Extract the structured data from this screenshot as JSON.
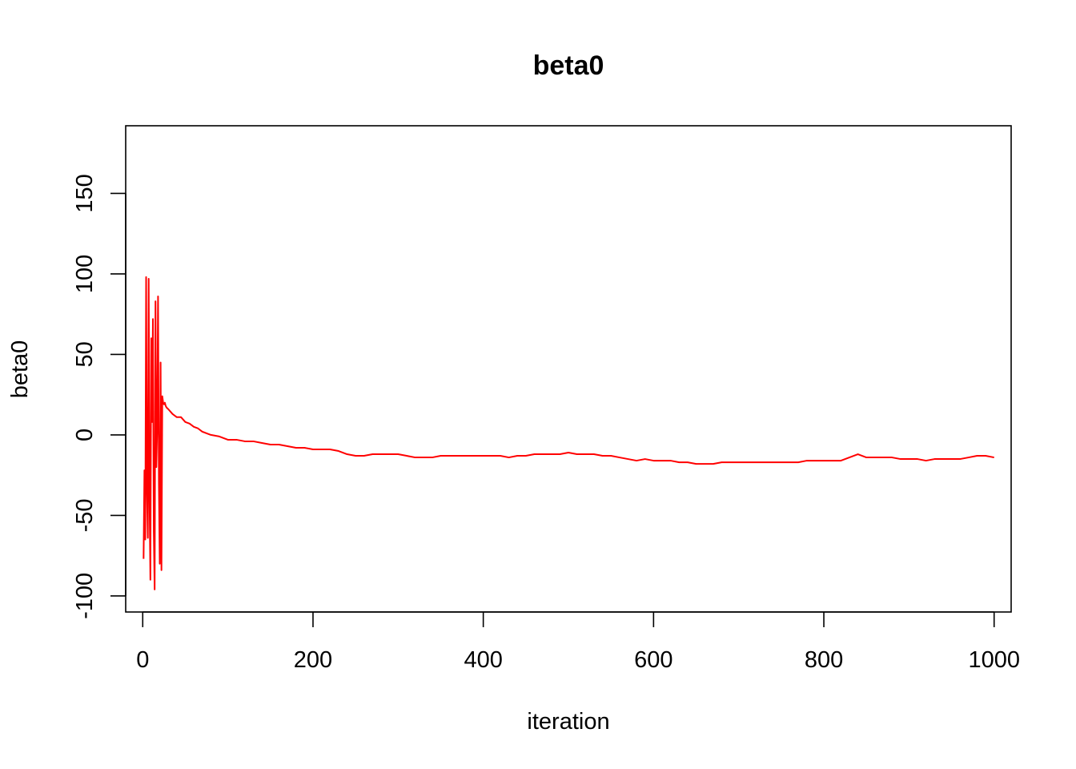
{
  "chart_data": {
    "type": "line",
    "title": "beta0",
    "xlabel": "iteration",
    "ylabel": "beta0",
    "xlim": [
      -20,
      1020
    ],
    "ylim": [
      -110,
      192
    ],
    "x_ticks": [
      0,
      200,
      400,
      600,
      800,
      1000
    ],
    "y_ticks": [
      -100,
      -50,
      0,
      50,
      100,
      150
    ],
    "x_tick_labels": [
      "0",
      "200",
      "400",
      "600",
      "800",
      "1000"
    ],
    "y_tick_labels": [
      "-100",
      "-50",
      "0",
      "50",
      "100",
      "150"
    ],
    "grid": false,
    "line_color": "#ff0000",
    "series": [
      {
        "x": [
          1,
          2,
          3,
          4,
          5,
          6,
          7,
          8,
          9,
          10,
          11,
          12,
          13,
          14,
          15,
          16,
          17,
          18,
          19,
          20,
          21,
          22,
          23,
          24,
          25,
          26,
          27,
          28,
          30,
          35,
          40,
          45,
          50,
          55,
          60,
          65,
          70,
          75,
          80,
          90,
          100,
          110,
          120,
          130,
          140,
          150,
          160,
          170,
          180,
          190,
          200,
          210,
          220,
          230,
          240,
          250,
          260,
          270,
          280,
          290,
          300,
          310,
          320,
          330,
          340,
          350,
          360,
          370,
          380,
          390,
          400,
          410,
          420,
          430,
          440,
          450,
          460,
          470,
          480,
          490,
          500,
          510,
          520,
          530,
          540,
          550,
          560,
          570,
          580,
          590,
          600,
          610,
          620,
          630,
          640,
          650,
          660,
          670,
          680,
          690,
          700,
          710,
          720,
          730,
          740,
          750,
          760,
          770,
          780,
          790,
          800,
          810,
          820,
          830,
          840,
          850,
          860,
          870,
          880,
          890,
          900,
          910,
          920,
          930,
          940,
          950,
          960,
          970,
          980,
          990,
          1000
        ],
        "y": [
          -77,
          -22,
          -65,
          98,
          -35,
          -64,
          97,
          -40,
          -90,
          60,
          8,
          72,
          -60,
          -96,
          83,
          -20,
          5,
          86,
          -30,
          -80,
          45,
          -84,
          24,
          20,
          19,
          20,
          18,
          17,
          16,
          13,
          11,
          11,
          8,
          7,
          5,
          4,
          2,
          1,
          0,
          -1,
          -3,
          -3,
          -4,
          -4,
          -5,
          -6,
          -6,
          -7,
          -8,
          -8,
          -9,
          -9,
          -9,
          -10,
          -12,
          -13,
          -13,
          -12,
          -12,
          -12,
          -12,
          -13,
          -14,
          -14,
          -14,
          -13,
          -13,
          -13,
          -13,
          -13,
          -13,
          -13,
          -13,
          -14,
          -13,
          -13,
          -12,
          -12,
          -12,
          -12,
          -11,
          -12,
          -12,
          -12,
          -13,
          -13,
          -14,
          -15,
          -16,
          -15,
          -16,
          -16,
          -16,
          -17,
          -17,
          -18,
          -18,
          -18,
          -17,
          -17,
          -17,
          -17,
          -17,
          -17,
          -17,
          -17,
          -17,
          -17,
          -16,
          -16,
          -16,
          -16,
          -16,
          -14,
          -12,
          -14,
          -14,
          -14,
          -14,
          -15,
          -15,
          -15,
          -16,
          -15,
          -15,
          -15,
          -15,
          -14,
          -13,
          -13,
          -14
        ]
      }
    ]
  }
}
